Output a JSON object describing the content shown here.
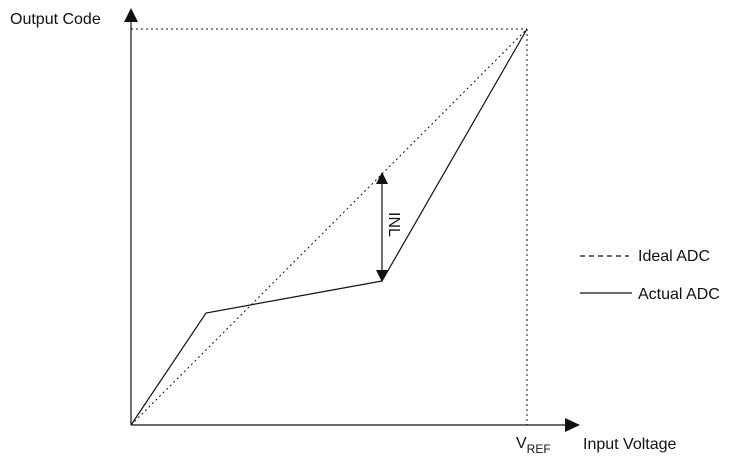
{
  "diagram": {
    "y_axis_label": "Output Code",
    "x_axis_label": "Input Voltage",
    "vref_main": "V",
    "vref_sub": "REF",
    "inl_label": "INL",
    "legend": {
      "ideal_label": "Ideal ADC",
      "actual_label": "Actual ADC"
    },
    "colors": {
      "line": "#111111",
      "background": "#ffffff"
    }
  }
}
